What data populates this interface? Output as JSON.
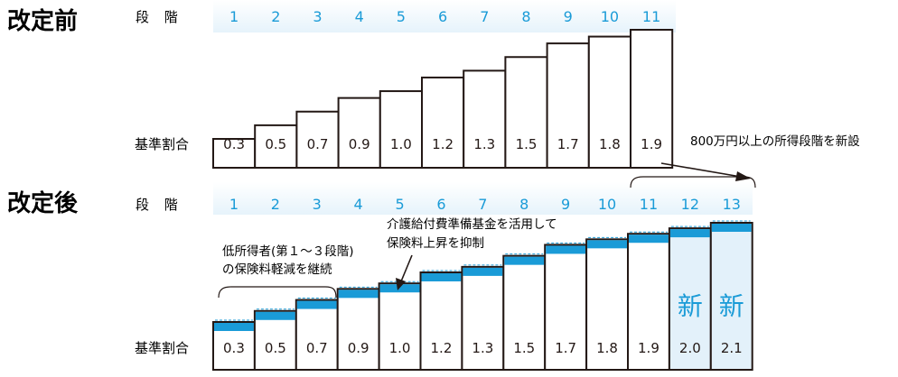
{
  "colors": {
    "stage_blue": "#1a9bd7",
    "band_dark": "#1a9bd7",
    "band_light": "#e8f4fb",
    "new_fill": "#e3f1fa",
    "ink": "#231815"
  },
  "before": {
    "title": "改定前",
    "stage_label": "段 階",
    "ratio_label": "基準割合",
    "stages": [
      "1",
      "2",
      "3",
      "4",
      "5",
      "6",
      "7",
      "8",
      "9",
      "10",
      "11"
    ],
    "ratios": [
      "0.3",
      "0.5",
      "0.7",
      "0.9",
      "1.0",
      "1.2",
      "1.3",
      "1.5",
      "1.7",
      "1.8",
      "1.9"
    ]
  },
  "after": {
    "title": "改定後",
    "stage_label": "段 階",
    "ratio_label": "基準割合",
    "stages": [
      "1",
      "2",
      "3",
      "4",
      "5",
      "6",
      "7",
      "8",
      "9",
      "10",
      "11",
      "12",
      "13"
    ],
    "ratios": [
      "0.3",
      "0.5",
      "0.7",
      "0.9",
      "1.0",
      "1.2",
      "1.3",
      "1.5",
      "1.7",
      "1.8",
      "1.9",
      "2.0",
      "2.1"
    ],
    "new_label": "新"
  },
  "annotations": {
    "new_stages": "800万円以上の所得段階を新設",
    "low_income_line1": "低所得者(第１～３段階)",
    "low_income_line2": "の保険料軽減を継続",
    "fund_line1": "介護給付費準備基金を活用して",
    "fund_line2": "保険料上昇を抑制"
  },
  "chart_data": [
    {
      "type": "bar",
      "title": "改定前",
      "categories": [
        "1",
        "2",
        "3",
        "4",
        "5",
        "6",
        "7",
        "8",
        "9",
        "10",
        "11"
      ],
      "values": [
        0.3,
        0.5,
        0.7,
        0.9,
        1.0,
        1.2,
        1.3,
        1.5,
        1.7,
        1.8,
        1.9
      ],
      "xlabel": "段 階",
      "ylabel": "基準割合"
    },
    {
      "type": "bar",
      "title": "改定後",
      "categories": [
        "1",
        "2",
        "3",
        "4",
        "5",
        "6",
        "7",
        "8",
        "9",
        "10",
        "11",
        "12",
        "13"
      ],
      "values": [
        0.3,
        0.5,
        0.7,
        0.9,
        1.0,
        1.2,
        1.3,
        1.5,
        1.7,
        1.8,
        1.9,
        2.0,
        2.1
      ],
      "xlabel": "段 階",
      "ylabel": "基準割合"
    }
  ]
}
